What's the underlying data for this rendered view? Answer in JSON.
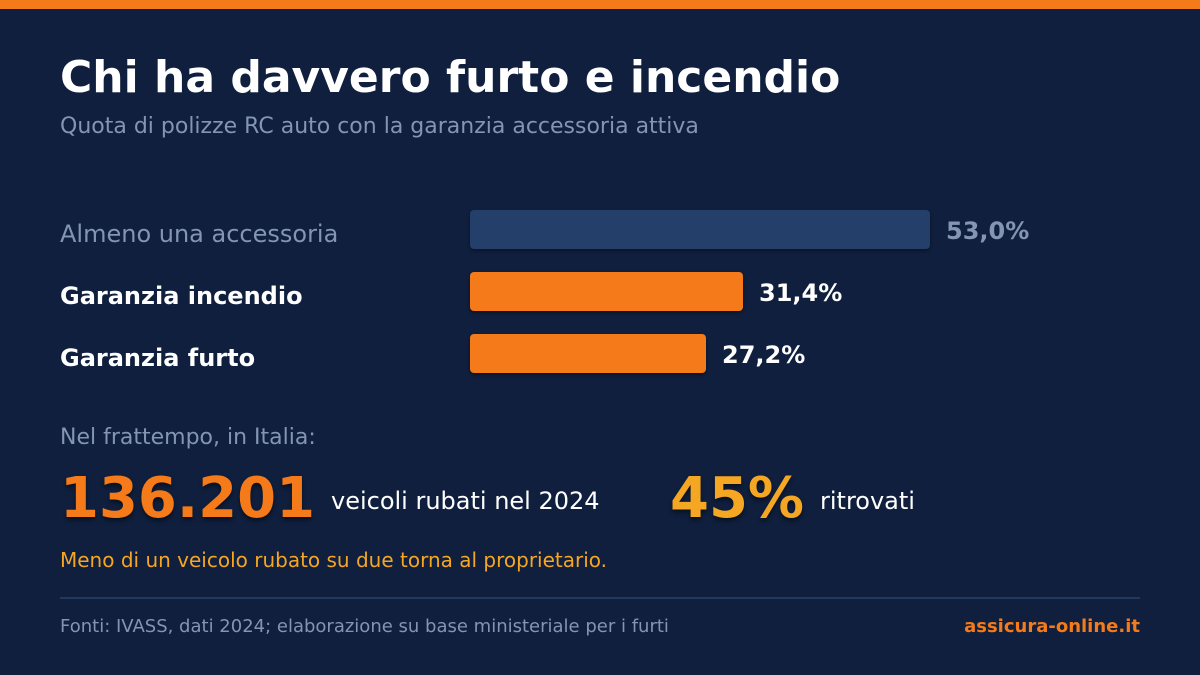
{
  "header": {
    "title": "Chi ha davvero furto e incendio",
    "subtitle": "Quota di polizze RC auto con la garanzia accessoria attiva"
  },
  "chart_data": {
    "type": "bar",
    "orientation": "horizontal",
    "categories": [
      "Almeno una accessoria",
      "Garanzia incendio",
      "Garanzia furto"
    ],
    "values": [
      53.0,
      31.4,
      27.2
    ],
    "value_labels": [
      "53,0%",
      "31,4%",
      "27,2%"
    ],
    "unit": "%",
    "grid": false,
    "legend": "none",
    "bar_colors": [
      "#253f6b",
      "#f47a1a",
      "#f47a1a"
    ],
    "label_colors": [
      "#8395b3",
      "#ffffff",
      "#ffffff"
    ],
    "label_bold": [
      false,
      true,
      true
    ]
  },
  "stats": {
    "intro": "Nel frattempo, in Italia:",
    "stolen_value": "136.201",
    "stolen_caption": "veicoli rubati nel 2024",
    "recovered_value": "45%",
    "recovered_caption": "ritrovati",
    "note": "Meno di un veicolo rubato su due torna al proprietario."
  },
  "footer": {
    "source": "Fonti: IVASS, dati 2024; elaborazione su base ministeriale per i furti",
    "brand": "assicura-online.it"
  },
  "colors": {
    "background": "#0f1f3d",
    "accent_orange": "#f47a1a",
    "accent_yellow": "#f5a623",
    "muted_text": "#8395b3",
    "bar_muted": "#253f6b"
  }
}
